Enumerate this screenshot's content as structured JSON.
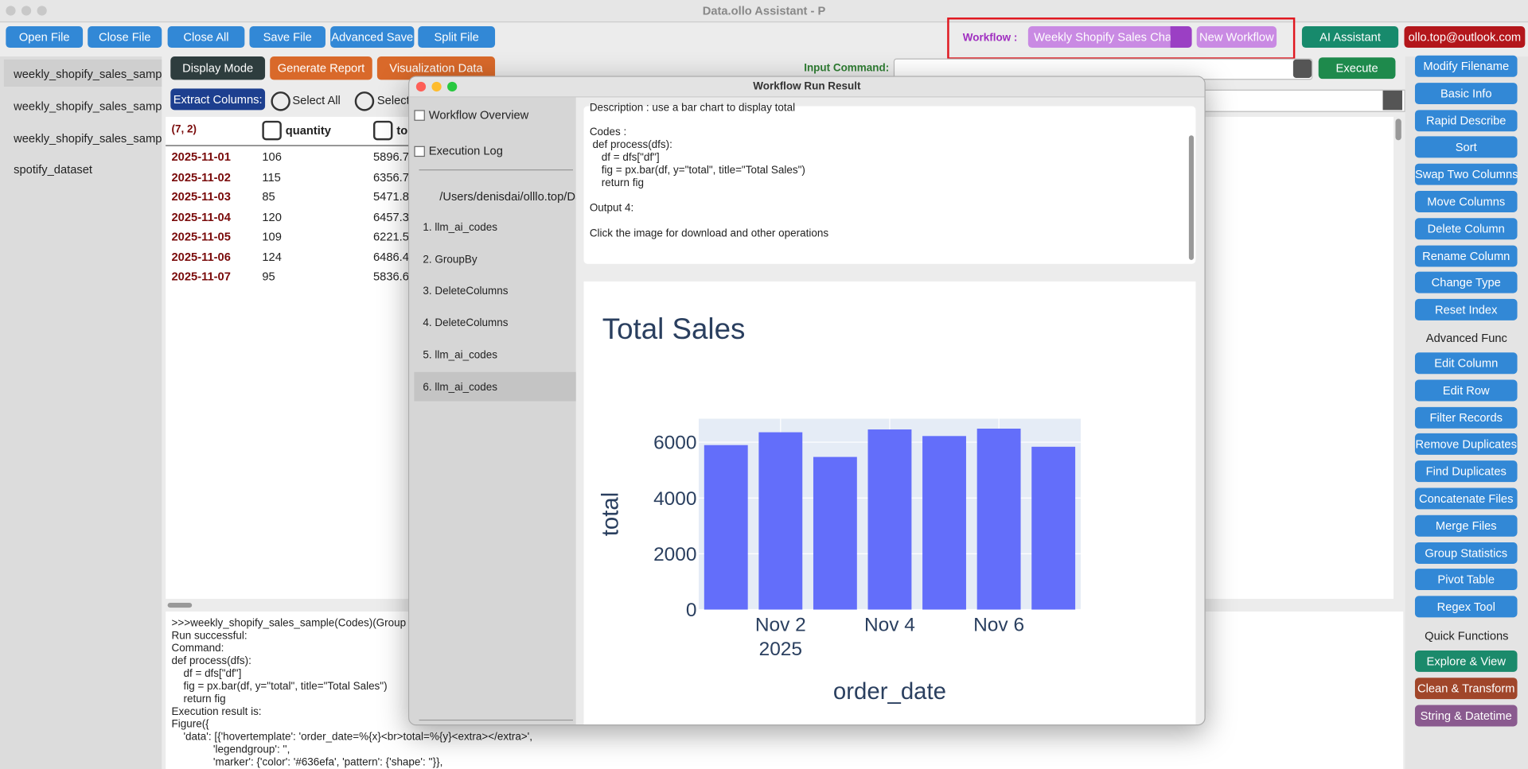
{
  "app": {
    "title": "Data.ollo Assistant - P"
  },
  "toolbar": {
    "buttons": [
      "Open File",
      "Close File",
      "Close All",
      "Save File",
      "Advanced Save",
      "Split File"
    ],
    "workflow_label": "Workflow :",
    "workflow_selected": "Weekly Shopify Sales Chart",
    "new_workflow": "New Workflow",
    "ai_assistant": "AI Assistant",
    "account": "ollo.top@outlook.com"
  },
  "files": [
    "weekly_shopify_sales_sample(",
    "weekly_shopify_sales_sample(",
    "weekly_shopify_sales_sample",
    "spotify_dataset"
  ],
  "tabs": [
    "Display Mode",
    "Generate Report",
    "Visualization Data"
  ],
  "command": {
    "label": "Input Command:",
    "execute": "Execute"
  },
  "extract": {
    "label": "Extract Columns:",
    "options": [
      "Select All",
      "Select"
    ]
  },
  "table": {
    "shape": "(7, 2)",
    "columns": [
      "quantity",
      "to"
    ],
    "rows": [
      [
        "2025-11-01",
        106,
        "5896.7"
      ],
      [
        "2025-11-02",
        115,
        "6356.7"
      ],
      [
        "2025-11-03",
        85,
        "5471.8"
      ],
      [
        "2025-11-04",
        120,
        "6457.3"
      ],
      [
        "2025-11-05",
        109,
        "6221.5"
      ],
      [
        "2025-11-06",
        124,
        "6486.4"
      ],
      [
        "2025-11-07",
        95,
        "5836.6"
      ]
    ]
  },
  "console": {
    "lines": [
      ">>>weekly_shopify_sales_sample(Codes)(Group",
      "Run successful:",
      "Command:",
      "def process(dfs):",
      "    df = dfs[\"df\"]",
      "    fig = px.bar(df, y=\"total\", title=\"Total Sales\")",
      "    return fig",
      "Execution result is:",
      "Figure({",
      "    'data': [{'hovertemplate': 'order_date=%{x}<br>total=%{y}<extra></extra>',",
      "              'legendgroup': '',",
      "              'marker': {'color': '#636efa', 'pattern': {'shape': ''}},"
    ]
  },
  "dialog": {
    "title": "Workflow Run Result",
    "nav": [
      "Workflow Overview",
      "Execution Log"
    ],
    "path": "/Users/denisdai/olllo.top/Dat",
    "steps": [
      "1. llm_ai_codes",
      "2. GroupBy",
      "3. DeleteColumns",
      "4. DeleteColumns",
      "5. llm_ai_codes",
      "6. llm_ai_codes"
    ],
    "description": [
      "Description : use a bar chart to display total",
      "Codes :",
      " def process(dfs):",
      "    df = dfs[\"df\"]",
      "    fig = px.bar(df, y=\"total\", title=\"Total Sales\")",
      "    return fig",
      "Output 4:",
      "Click the image for download and other operations"
    ]
  },
  "right_panel": {
    "basic": [
      "Modify Filename",
      "Basic Info",
      "Rapid Describe",
      "Sort",
      "Swap Two Columns",
      "Move Columns",
      "Delete Column",
      "Rename Column",
      "Change Type",
      "Reset Index"
    ],
    "advanced_heading": "Advanced Func",
    "advanced": [
      "Edit Column",
      "Edit Row",
      "Filter Records",
      "Remove Duplicates",
      "Find Duplicates",
      "Concatenate Files",
      "Merge Files",
      "Group Statistics",
      "Pivot Table",
      "Regex Tool"
    ],
    "quick_heading": "Quick Functions",
    "quick": [
      "Explore & View",
      "Clean & Transform",
      "String & Datetime"
    ]
  },
  "chart_data": {
    "type": "bar",
    "title": "Total Sales",
    "x_label": "order_date",
    "y_label": "total",
    "x": [
      "2025-11-01",
      "2025-11-02",
      "2025-11-03",
      "2025-11-04",
      "2025-11-05",
      "2025-11-06",
      "2025-11-07"
    ],
    "values": [
      5896.7,
      6356.7,
      5471.8,
      6457.3,
      6221.5,
      6486.4,
      5836.6
    ],
    "color": "#636efa",
    "xlim": [
      "2025-10-31T12:00:00Z",
      "2025-11-07T12:00:00Z"
    ],
    "xticks": [
      {
        "value": "2025-11-02",
        "label": "Nov 2"
      },
      {
        "value": "2025-11-04",
        "label": "Nov 4"
      },
      {
        "value": "2025-11-06",
        "label": "Nov 6"
      }
    ],
    "xtick_year": "2025",
    "ylim": [
      0,
      6842
    ],
    "yticks": [
      0,
      2000,
      4000,
      6000
    ],
    "grid": true,
    "plot_bg": "#e5ecf6"
  }
}
